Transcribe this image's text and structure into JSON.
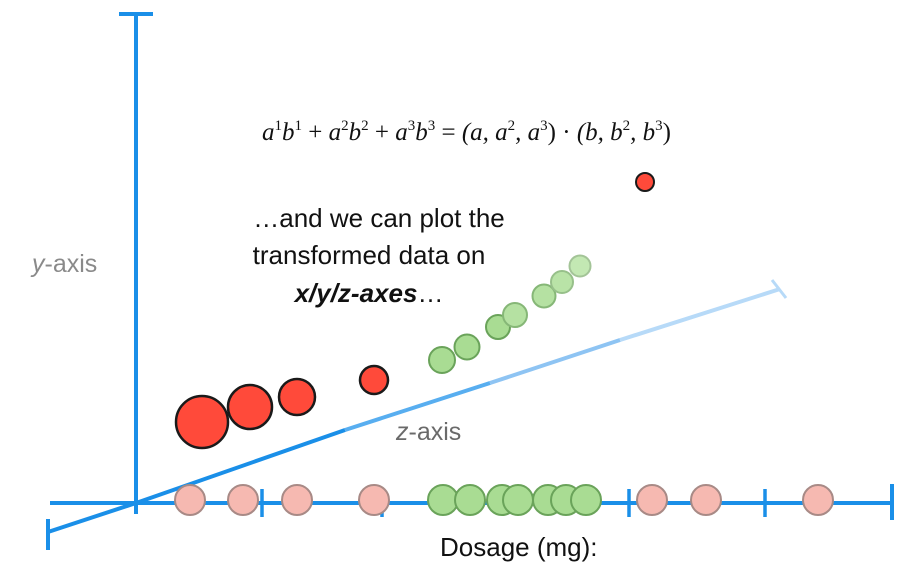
{
  "equation": {
    "lhs": [
      "a",
      "1",
      "b",
      "1",
      " + ",
      "a",
      "2",
      "b",
      "2",
      " + ",
      "a",
      "3",
      "b",
      "3"
    ],
    "equals": " = ",
    "rhs_a": [
      "(a, a",
      "2",
      ", a",
      "3",
      ")"
    ],
    "dot": " · ",
    "rhs_b": [
      "(b, b",
      "2",
      ", b",
      "3",
      ")"
    ]
  },
  "caption": {
    "line1": "…and we can plot the",
    "line2": "transformed data on",
    "line3_bold": "x/y/z-axes",
    "line3_tail": "…"
  },
  "axes": {
    "y_label_var": "y",
    "y_label_suffix": "-axis",
    "z_label_var": "z",
    "z_label_suffix": "-axis",
    "x_label": "Dosage (mg):"
  },
  "colors": {
    "axis": "#1a8fe8",
    "axis_light": "#aed3f7",
    "red": "#ff4a3a",
    "red_stroke": "#1a1a1a",
    "green": "#a9dc93",
    "green_stroke": "#6aa35a",
    "pink": "#f6b9b1",
    "pink_stroke": "#a88a86",
    "gray_text": "#8a8a8a"
  }
}
